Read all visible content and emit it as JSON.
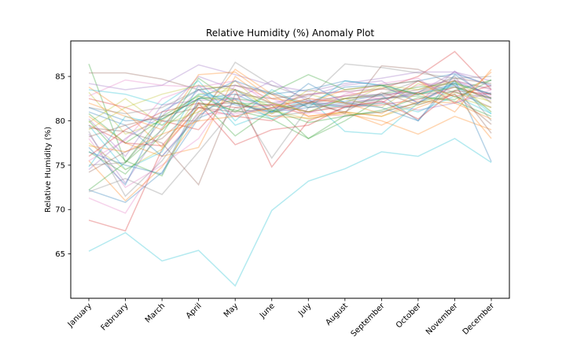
{
  "chart_data": {
    "type": "line",
    "title": "Relative Humidity (%) Anomaly Plot",
    "xlabel": "",
    "ylabel": "Relative Humidity (%)",
    "categories": [
      "January",
      "February",
      "March",
      "April",
      "May",
      "June",
      "July",
      "August",
      "September",
      "October",
      "November",
      "December"
    ],
    "ylim": [
      60,
      89
    ],
    "yticks": [
      65,
      70,
      75,
      80,
      85
    ],
    "grid": false,
    "legend": "none",
    "series": [
      {
        "color": "#17becf",
        "values": [
          65.3,
          67.4,
          64.2,
          65.4,
          61.4,
          69.9,
          73.2,
          74.6,
          76.5,
          76.0,
          78.0,
          75.3
        ]
      },
      {
        "color": "#d62728",
        "values": [
          68.8,
          67.6,
          76.8,
          81.5,
          80.5,
          80.0,
          82.0,
          82.8,
          83.6,
          85.0,
          87.8,
          83.5
        ]
      },
      {
        "color": "#1f77b4",
        "values": [
          72.2,
          70.8,
          74.2,
          80.3,
          82.0,
          81.0,
          81.5,
          82.0,
          82.5,
          83.0,
          84.2,
          83.0
        ]
      },
      {
        "color": "#7f7f7f",
        "values": [
          72.0,
          73.5,
          71.7,
          76.5,
          81.5,
          80.5,
          81.0,
          81.8,
          82.4,
          83.2,
          84.5,
          83.6
        ]
      },
      {
        "color": "#e377c2",
        "values": [
          71.3,
          69.6,
          76.0,
          80.8,
          80.8,
          81.4,
          82.5,
          82.0,
          82.6,
          84.0,
          84.5,
          83.5
        ]
      },
      {
        "color": "#2ca02c",
        "values": [
          86.4,
          75.3,
          79.0,
          82.5,
          82.5,
          82.0,
          81.0,
          82.5,
          83.0,
          83.8,
          84.2,
          83.0
        ]
      },
      {
        "color": "#8c564b",
        "values": [
          85.4,
          85.4,
          84.7,
          83.5,
          84.0,
          83.0,
          82.0,
          82.5,
          82.8,
          83.5,
          84.8,
          84.2
        ]
      },
      {
        "color": "#9467bd",
        "values": [
          84.2,
          83.5,
          84.0,
          86.3,
          85.2,
          84.0,
          83.3,
          84.2,
          84.8,
          85.5,
          85.5,
          84.5
        ]
      },
      {
        "color": "#ff7f0e",
        "values": [
          83.8,
          81.0,
          77.0,
          81.5,
          82.3,
          80.5,
          80.3,
          80.8,
          80.0,
          78.5,
          80.5,
          79.0
        ]
      },
      {
        "color": "#bcbd22",
        "values": [
          83.2,
          78.5,
          80.0,
          83.0,
          83.5,
          81.5,
          83.0,
          82.0,
          83.8,
          83.0,
          84.5,
          82.0
        ]
      },
      {
        "color": "#d62728",
        "values": [
          82.5,
          81.5,
          80.0,
          79.0,
          83.5,
          74.8,
          80.0,
          81.5,
          81.8,
          82.4,
          83.8,
          82.6
        ]
      },
      {
        "color": "#1f77b4",
        "values": [
          81.5,
          80.0,
          80.2,
          82.5,
          83.0,
          81.2,
          81.8,
          82.2,
          82.9,
          80.0,
          84.6,
          75.4
        ]
      },
      {
        "color": "#ff7f0e",
        "values": [
          80.5,
          77.5,
          76.0,
          77.0,
          85.0,
          82.0,
          80.5,
          81.0,
          79.5,
          81.5,
          83.0,
          78.0
        ]
      },
      {
        "color": "#2ca02c",
        "values": [
          80.0,
          75.5,
          73.8,
          82.0,
          81.2,
          80.2,
          78.0,
          80.0,
          82.5,
          82.8,
          82.2,
          80.5
        ]
      },
      {
        "color": "#17becf",
        "values": [
          79.5,
          74.5,
          76.5,
          84.0,
          79.5,
          81.0,
          82.5,
          78.8,
          78.5,
          82.0,
          84.2,
          81.0
        ]
      },
      {
        "color": "#8c564b",
        "values": [
          79.2,
          78.8,
          77.5,
          72.8,
          83.0,
          82.5,
          83.0,
          83.3,
          83.6,
          83.0,
          83.3,
          81.5
        ]
      },
      {
        "color": "#7f7f7f",
        "values": [
          78.8,
          71.5,
          75.5,
          81.0,
          82.5,
          75.8,
          81.5,
          81.8,
          82.5,
          83.2,
          85.0,
          80.0
        ]
      },
      {
        "color": "#9467bd",
        "values": [
          78.5,
          73.0,
          79.2,
          83.5,
          80.5,
          81.8,
          82.2,
          81.6,
          82.2,
          81.2,
          82.0,
          83.2
        ]
      },
      {
        "color": "#e377c2",
        "values": [
          78.0,
          72.5,
          75.0,
          78.0,
          84.0,
          82.5,
          81.0,
          80.5,
          81.0,
          82.0,
          84.0,
          82.4
        ]
      },
      {
        "color": "#bcbd22",
        "values": [
          77.5,
          74.5,
          76.8,
          82.8,
          82.0,
          81.2,
          80.2,
          81.0,
          80.5,
          81.8,
          83.2,
          82.2
        ]
      },
      {
        "color": "#1f77b4",
        "values": [
          77.0,
          72.8,
          81.0,
          83.5,
          81.8,
          81.0,
          82.0,
          83.8,
          84.0,
          82.0,
          84.4,
          83.0
        ]
      },
      {
        "color": "#2ca02c",
        "values": [
          76.5,
          74.0,
          78.5,
          84.8,
          82.0,
          81.8,
          78.0,
          80.6,
          81.0,
          82.0,
          83.4,
          84.6
        ]
      },
      {
        "color": "#d62728",
        "values": [
          76.0,
          79.0,
          81.0,
          82.0,
          77.3,
          79.0,
          79.5,
          81.6,
          82.0,
          84.5,
          82.7,
          84.0
        ]
      },
      {
        "color": "#ff7f0e",
        "values": [
          75.5,
          71.0,
          74.8,
          80.5,
          85.8,
          83.0,
          80.5,
          81.0,
          80.5,
          82.2,
          82.0,
          80.2
        ]
      },
      {
        "color": "#7f7f7f",
        "values": [
          75.0,
          75.3,
          80.0,
          80.0,
          86.6,
          84.0,
          82.5,
          86.4,
          86.0,
          85.4,
          84.8,
          85.0
        ]
      },
      {
        "color": "#17becf",
        "values": [
          74.8,
          80.5,
          79.5,
          83.0,
          82.5,
          80.2,
          82.0,
          81.5,
          82.0,
          81.0,
          82.8,
          80.8
        ]
      },
      {
        "color": "#9467bd",
        "values": [
          74.5,
          78.0,
          80.5,
          85.0,
          83.5,
          82.0,
          82.8,
          84.0,
          84.5,
          82.0,
          85.6,
          82.0
        ]
      },
      {
        "color": "#8c564b",
        "values": [
          74.2,
          76.5,
          78.0,
          81.8,
          82.0,
          80.8,
          82.3,
          80.8,
          86.2,
          85.8,
          84.0,
          78.6
        ]
      },
      {
        "color": "#bcbd22",
        "values": [
          79.8,
          82.5,
          79.5,
          81.0,
          84.5,
          80.8,
          83.5,
          82.5,
          81.5,
          84.2,
          82.7,
          81.5
        ]
      },
      {
        "color": "#e377c2",
        "values": [
          82.8,
          84.6,
          84.0,
          83.8,
          84.5,
          81.8,
          83.0,
          83.3,
          82.4,
          83.0,
          84.6,
          82.8
        ]
      },
      {
        "color": "#1f77b4",
        "values": [
          81.0,
          79.5,
          76.0,
          80.5,
          83.5,
          81.0,
          84.2,
          82.0,
          81.5,
          80.0,
          85.2,
          82.5
        ]
      },
      {
        "color": "#ff7f0e",
        "values": [
          82.0,
          80.5,
          79.0,
          85.2,
          85.5,
          82.5,
          82.0,
          83.5,
          84.0,
          84.5,
          82.0,
          85.5
        ]
      },
      {
        "color": "#2ca02c",
        "values": [
          80.8,
          77.5,
          80.2,
          82.5,
          78.3,
          81.2,
          79.8,
          80.5,
          81.2,
          82.6,
          82.4,
          84.6
        ]
      },
      {
        "color": "#d62728",
        "values": [
          79.5,
          77.5,
          77.2,
          82.0,
          81.5,
          81.8,
          81.0,
          81.6,
          82.2,
          80.2,
          83.4,
          83.0
        ]
      },
      {
        "color": "#17becf",
        "values": [
          83.5,
          83.0,
          81.8,
          84.5,
          80.0,
          83.5,
          81.5,
          84.5,
          84.0,
          83.0,
          84.0,
          80.8
        ]
      },
      {
        "color": "#7f7f7f",
        "values": [
          81.5,
          80.8,
          81.5,
          83.5,
          84.0,
          83.2,
          81.5,
          82.5,
          83.0,
          84.5,
          83.2,
          82.6
        ]
      },
      {
        "color": "#9467bd",
        "values": [
          80.2,
          76.0,
          81.8,
          82.3,
          82.4,
          84.5,
          82.2,
          82.8,
          83.0,
          83.2,
          85.5,
          83.8
        ]
      },
      {
        "color": "#8c564b",
        "values": [
          78.2,
          79.5,
          80.5,
          81.5,
          81.0,
          81.4,
          82.0,
          81.0,
          83.2,
          81.8,
          83.0,
          79.6
        ]
      },
      {
        "color": "#bcbd22",
        "values": [
          79.0,
          81.5,
          83.0,
          84.0,
          83.5,
          82.0,
          81.0,
          82.5,
          84.0,
          83.5,
          84.5,
          81.0
        ]
      },
      {
        "color": "#1f77b4",
        "values": [
          76.5,
          75.0,
          74.0,
          82.5,
          84.5,
          83.0,
          83.5,
          84.5,
          84.0,
          84.5,
          85.3,
          84.0
        ]
      },
      {
        "color": "#2ca02c",
        "values": [
          72.2,
          75.3,
          80.5,
          82.8,
          81.0,
          83.2,
          85.2,
          83.5,
          84.0,
          83.0,
          83.8,
          82.5
        ]
      },
      {
        "color": "#ff7f0e",
        "values": [
          77.2,
          76.5,
          78.5,
          80.0,
          80.5,
          81.5,
          82.5,
          82.0,
          80.8,
          83.2,
          81.0,
          85.8
        ]
      },
      {
        "color": "#e377c2",
        "values": [
          75.5,
          77.8,
          82.5,
          84.0,
          82.5,
          81.5,
          80.8,
          83.0,
          84.2,
          84.8,
          82.0,
          83.5
        ]
      }
    ]
  }
}
